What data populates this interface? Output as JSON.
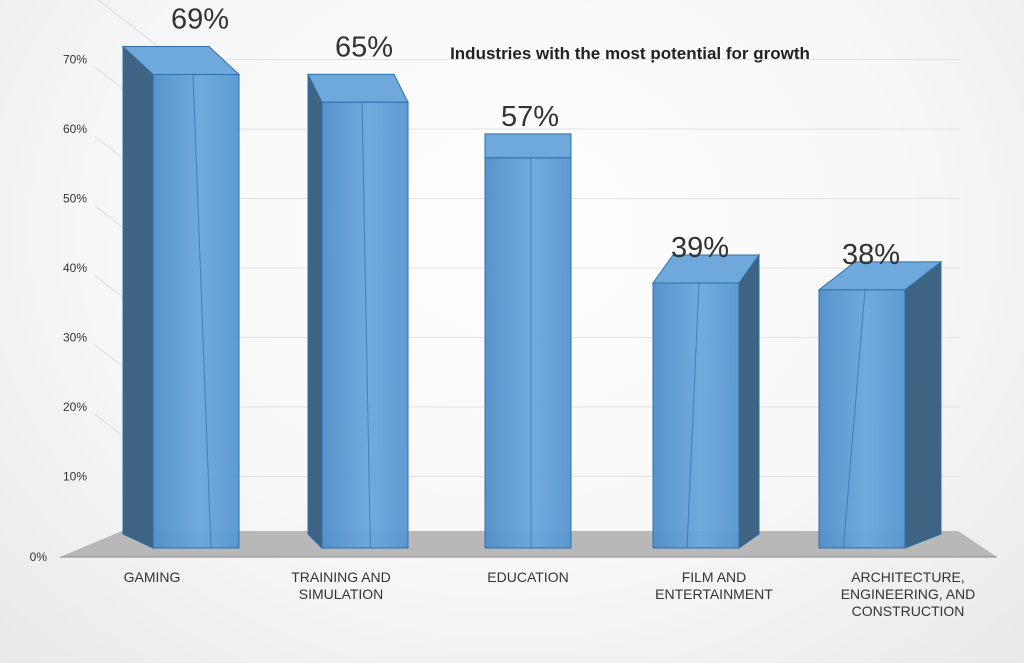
{
  "chart_data": {
    "type": "bar",
    "title": "Industries with the most potential for growth",
    "categories": [
      "GAMING",
      "TRAINING AND SIMULATION",
      "EDUCATION",
      "FILM AND ENTERTAINMENT",
      "ARCHITECTURE, ENGINEERING, AND CONSTRUCTION"
    ],
    "category_lines": [
      [
        "GAMING"
      ],
      [
        "TRAINING AND",
        "SIMULATION"
      ],
      [
        "EDUCATION"
      ],
      [
        "FILM AND",
        "ENTERTAINMENT"
      ],
      [
        "ARCHITECTURE,",
        "ENGINEERING, AND",
        "CONSTRUCTION"
      ]
    ],
    "values": [
      69,
      65,
      57,
      39,
      38
    ],
    "data_labels": [
      "69%",
      "65%",
      "57%",
      "39%",
      "38%"
    ],
    "yticks": [
      0,
      10,
      20,
      30,
      40,
      50,
      60,
      70
    ],
    "ytick_labels": [
      "0%",
      "10%",
      "20%",
      "30%",
      "40%",
      "50%",
      "60%",
      "70%"
    ],
    "ylim": [
      0,
      70
    ],
    "xlabel": "",
    "ylabel": "",
    "grid": true,
    "legend": "none",
    "colors": {
      "bar_front": "#5b9bd5",
      "bar_side": "#3f6383",
      "bar_top": "#6fa9dc",
      "bar_edge": "#2f6ea8",
      "floor": "#b8b8b8"
    }
  }
}
